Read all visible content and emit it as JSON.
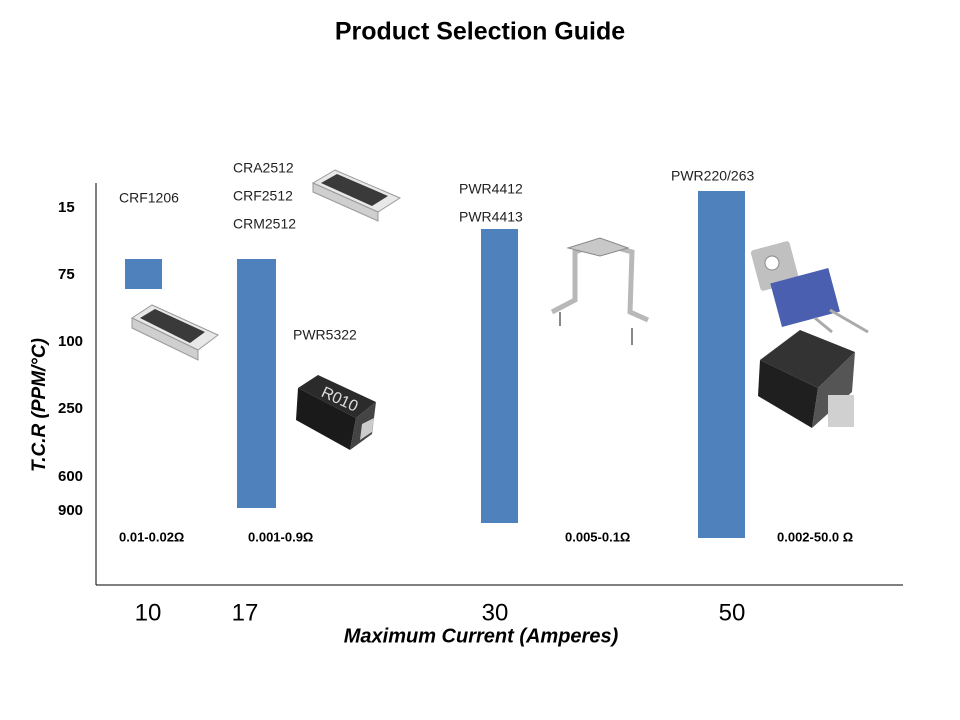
{
  "title": "Product Selection Guide",
  "y_axis": {
    "label": "T.C.R (PPM/°C)",
    "ticks": [
      "15",
      "75",
      "100",
      "250",
      "600",
      "900"
    ]
  },
  "x_axis": {
    "label": "Maximum Current (Amperes)",
    "ticks": [
      "10",
      "17",
      "30",
      "50"
    ]
  },
  "groups": [
    {
      "products": [
        "CRF1206"
      ],
      "resistance": "0.01-0.02Ω"
    },
    {
      "products": [
        "CRA2512",
        "CRF2512",
        "CRM2512",
        "PWR5322"
      ],
      "resistance": "0.001-0.9Ω"
    },
    {
      "products": [
        "PWR4412",
        "PWR4413"
      ],
      "resistance": "0.005-0.1Ω"
    },
    {
      "products": [
        "PWR220/263"
      ],
      "resistance": "0.002-50.0 Ω"
    }
  ]
}
